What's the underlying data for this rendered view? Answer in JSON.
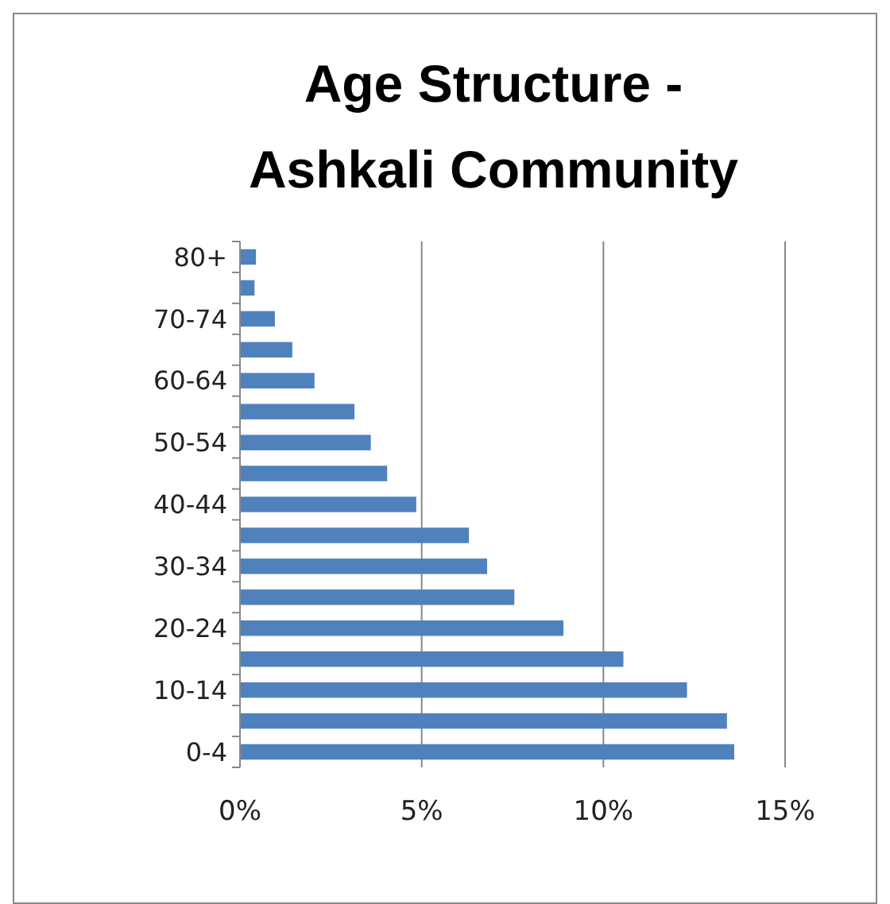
{
  "chart_data": {
    "type": "bar",
    "orientation": "horizontal",
    "title": "Age Structure -\nAshkali Community",
    "categories": [
      "80+",
      null,
      "70-74",
      null,
      "60-64",
      null,
      "50-54",
      null,
      "40-44",
      null,
      "30-34",
      null,
      "20-24",
      null,
      "10-14",
      null,
      "0-4"
    ],
    "values": [
      0.44,
      0.4,
      0.96,
      1.44,
      2.05,
      3.15,
      3.6,
      4.05,
      4.85,
      6.3,
      6.8,
      7.55,
      8.9,
      10.55,
      12.3,
      13.4,
      13.6
    ],
    "color": "#4f81bd",
    "xlim": [
      0,
      15
    ],
    "xticks": [
      {
        "value": 0,
        "label": "0%"
      },
      {
        "value": 5,
        "label": "5%"
      },
      {
        "value": 10,
        "label": "10%"
      },
      {
        "value": 15,
        "label": "15%"
      }
    ],
    "grid": "x"
  }
}
